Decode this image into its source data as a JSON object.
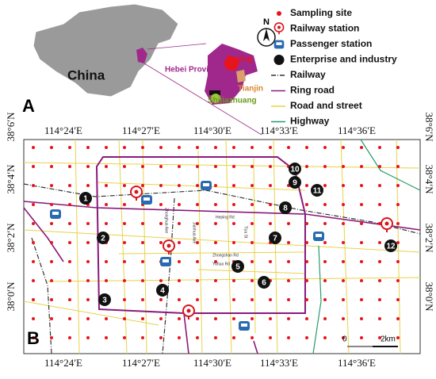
{
  "compass": "N",
  "panel_labels": [
    "A",
    "B"
  ],
  "inset": {
    "country": "China",
    "province": "Hebei Province",
    "cities": [
      "Beijing",
      "Tianjin",
      "Shijiazhuang"
    ]
  },
  "legend": [
    "Sampling site",
    "Railway station",
    "Passenger station",
    "Enterprise and industry",
    "Railway",
    "Ring road",
    "Road and street",
    "Highway"
  ],
  "axes": {
    "top": [
      "114°24′E",
      "114°27′E",
      "114°30′E",
      "114°33′E",
      "114°36′E"
    ],
    "bottom": [
      "114°24′E",
      "114°27′E",
      "114°30′E",
      "114°33′E",
      "114°36′E"
    ],
    "left": [
      "38°6′N",
      "38°4′N",
      "38°2′N",
      "38°0′N"
    ],
    "right": [
      "38°6′N",
      "38°4′N",
      "38°2′N",
      "38°0′N"
    ]
  },
  "enterprises": [
    "1",
    "2",
    "3",
    "4",
    "5",
    "6",
    "7",
    "8",
    "9",
    "10",
    "11",
    "12"
  ],
  "roads": [
    "Heping Rd",
    "Zhongshan Rd",
    "Yuhua Rd",
    "Zhonghua Ave",
    "Jianhua Ave",
    "Tiyu St"
  ],
  "scale": [
    "0",
    "2km"
  ]
}
